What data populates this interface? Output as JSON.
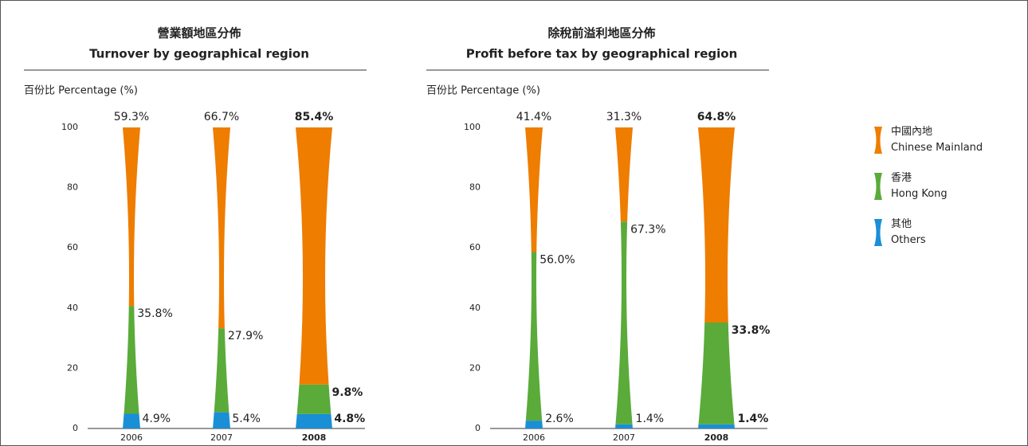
{
  "chart_data": [
    {
      "type": "bar",
      "stacked": true,
      "title": "營業額地區分佈",
      "subtitle": "Turnover by geographical region",
      "ylabel": "百份比 Percentage (%)",
      "categories": [
        "2006",
        "2007",
        "2008"
      ],
      "series": [
        {
          "name": "其他\nOthers",
          "color": "#1a8fd6",
          "values": [
            4.9,
            5.4,
            4.8
          ],
          "value_labels": [
            "4.9%",
            "5.4%",
            "4.8%"
          ]
        },
        {
          "name": "香港\nHong Kong",
          "color": "#5aab3a",
          "values": [
            35.8,
            27.9,
            9.8
          ],
          "value_labels": [
            "35.8%",
            "27.9%",
            "9.8%"
          ]
        },
        {
          "name": "中國內地\nChinese Mainland",
          "color": "#ee7d00",
          "values": [
            59.3,
            66.7,
            85.4
          ],
          "value_labels": [
            "59.3%",
            "66.7%",
            "85.4%"
          ]
        }
      ],
      "ylim": [
        0,
        100
      ],
      "yticks": [
        0,
        20,
        40,
        60,
        80,
        100
      ]
    },
    {
      "type": "bar",
      "stacked": true,
      "title": "除稅前溢利地區分佈",
      "subtitle": "Profit before tax by geographical region",
      "ylabel": "百份比 Percentage (%)",
      "categories": [
        "2006",
        "2007",
        "2008"
      ],
      "series": [
        {
          "name": "其他\nOthers",
          "color": "#1a8fd6",
          "values": [
            2.6,
            1.4,
            1.4
          ],
          "value_labels": [
            "2.6%",
            "1.4%",
            "1.4%"
          ]
        },
        {
          "name": "香港\nHong Kong",
          "color": "#5aab3a",
          "values": [
            56.0,
            67.3,
            33.8
          ],
          "value_labels": [
            "56.0%",
            "67.3%",
            "33.8%"
          ]
        },
        {
          "name": "中國內地\nChinese Mainland",
          "color": "#ee7d00",
          "values": [
            41.4,
            31.3,
            64.8
          ],
          "value_labels": [
            "41.4%",
            "31.3%",
            "64.8%"
          ]
        }
      ],
      "ylim": [
        0,
        100
      ],
      "yticks": [
        0,
        20,
        40,
        60,
        80,
        100
      ],
      "legend": "right"
    }
  ]
}
